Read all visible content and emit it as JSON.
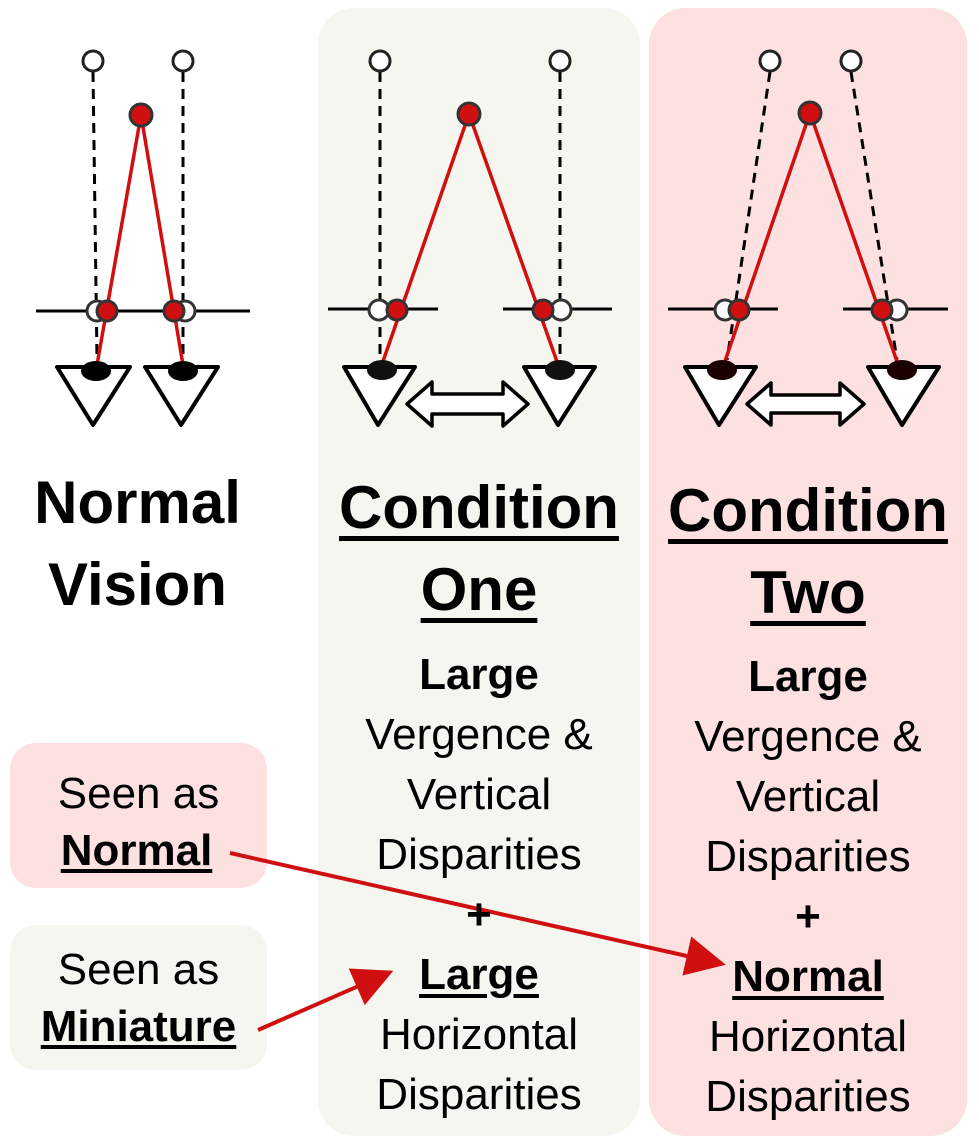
{
  "colors": {
    "condition_one_bg": "#f6f6f0",
    "condition_two_bg": "#fde1e1",
    "accent_red": "#d01010"
  },
  "columns": [
    {
      "title_line1": "Normal",
      "title_line2": "Vision"
    },
    {
      "title_line1": "Condition",
      "title_line2": "One",
      "desc_size": "Large",
      "desc_line1": "Vergence &",
      "desc_line2": "Vertical",
      "desc_line3": "Disparities",
      "plus": "+",
      "horiz_size": "Large",
      "horiz_line1": "Horizontal",
      "horiz_line2": "Disparities"
    },
    {
      "title_line1": "Condition",
      "title_line2": "Two",
      "desc_size": "Large",
      "desc_line1": "Vergence &",
      "desc_line2": "Vertical",
      "desc_line3": "Disparities",
      "plus": "+",
      "horiz_size": "Normal",
      "horiz_line1": "Horizontal",
      "horiz_line2": "Disparities"
    }
  ],
  "legend": [
    {
      "prefix": "Seen as",
      "label": "Normal"
    },
    {
      "prefix": "Seen as",
      "label": "Miniature"
    }
  ],
  "icons": [
    "eye-icon",
    "double-arrow-icon",
    "target-point-icon",
    "fixation-point-icon"
  ]
}
